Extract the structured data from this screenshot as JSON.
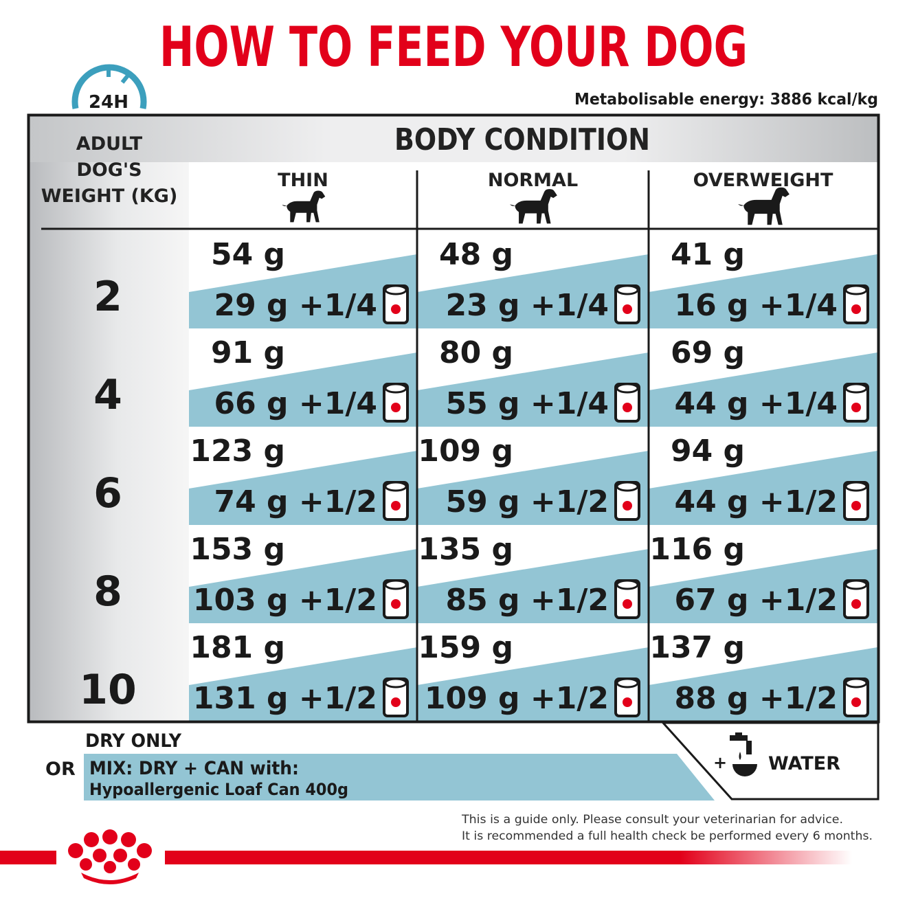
{
  "title": "HOW TO FEED YOUR DOG",
  "badge": "24H",
  "energy": "Metabolisable energy: 3886 kcal/kg",
  "table": {
    "weight_header": [
      "ADULT",
      "DOG'S",
      "WEIGHT (KG)"
    ],
    "condition_header": "BODY CONDITION",
    "columns": [
      "THIN",
      "NORMAL",
      "OVERWEIGHT"
    ],
    "rows": [
      {
        "weight": "2",
        "dry": [
          "54 g",
          "48 g",
          "41 g"
        ],
        "mix": [
          "29 g +1/4",
          "23 g +1/4",
          "16 g +1/4"
        ]
      },
      {
        "weight": "4",
        "dry": [
          "91 g",
          "80 g",
          "69 g"
        ],
        "mix": [
          "66 g +1/4",
          "55 g +1/4",
          "44 g +1/4"
        ]
      },
      {
        "weight": "6",
        "dry": [
          "123 g",
          "109 g",
          "94 g"
        ],
        "mix": [
          "74 g +1/2",
          "59 g +1/2",
          "44 g +1/2"
        ]
      },
      {
        "weight": "8",
        "dry": [
          "153 g",
          "135 g",
          "116 g"
        ],
        "mix": [
          "103 g +1/2",
          "85 g +1/2",
          "67 g +1/2"
        ]
      },
      {
        "weight": "10",
        "dry": [
          "181 g",
          "159 g",
          "137 g"
        ],
        "mix": [
          "131 g +1/2",
          "109 g +1/2",
          "88 g +1/2"
        ]
      }
    ]
  },
  "footer": {
    "dry_only": "DRY ONLY",
    "or": "OR",
    "mix_label": "MIX: DRY + CAN with:",
    "can_name": "Hypoallergenic Loaf Can 400g",
    "plus": "+",
    "water": "WATER",
    "disclaimer": [
      "This is a guide only. Please consult your veterinarian for advice.",
      "It is recommended a full health check be performed every 6 months."
    ]
  }
}
